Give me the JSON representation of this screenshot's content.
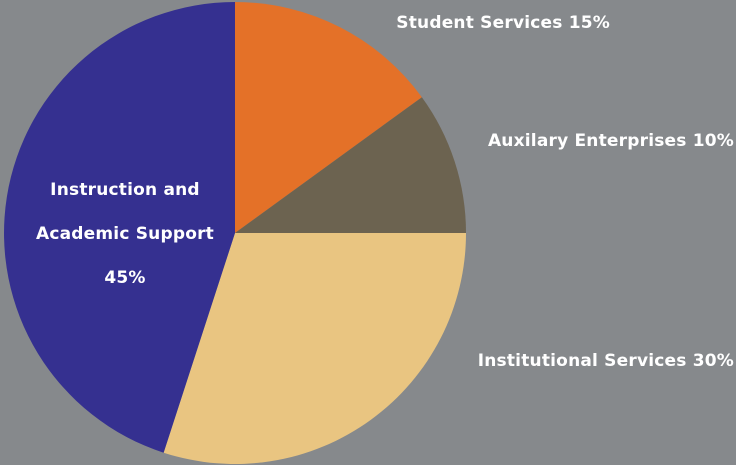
{
  "chart_data": {
    "type": "pie",
    "background": "#86898c",
    "slices": [
      {
        "label_lines": [
          "Student Services 15%"
        ],
        "value": 15,
        "color": "#e47128"
      },
      {
        "label_lines": [
          "Auxilary Enterprises 10%"
        ],
        "value": 10,
        "color": "#6c6350"
      },
      {
        "label_lines": [
          "Institutional Services 30%"
        ],
        "value": 30,
        "color": "#e9c581"
      },
      {
        "label_lines": [
          "Instruction and",
          "Academic Support",
          "45%"
        ],
        "value": 45,
        "color": "#353090"
      }
    ],
    "start_angle": "12 o'clock",
    "direction": "clockwise"
  }
}
